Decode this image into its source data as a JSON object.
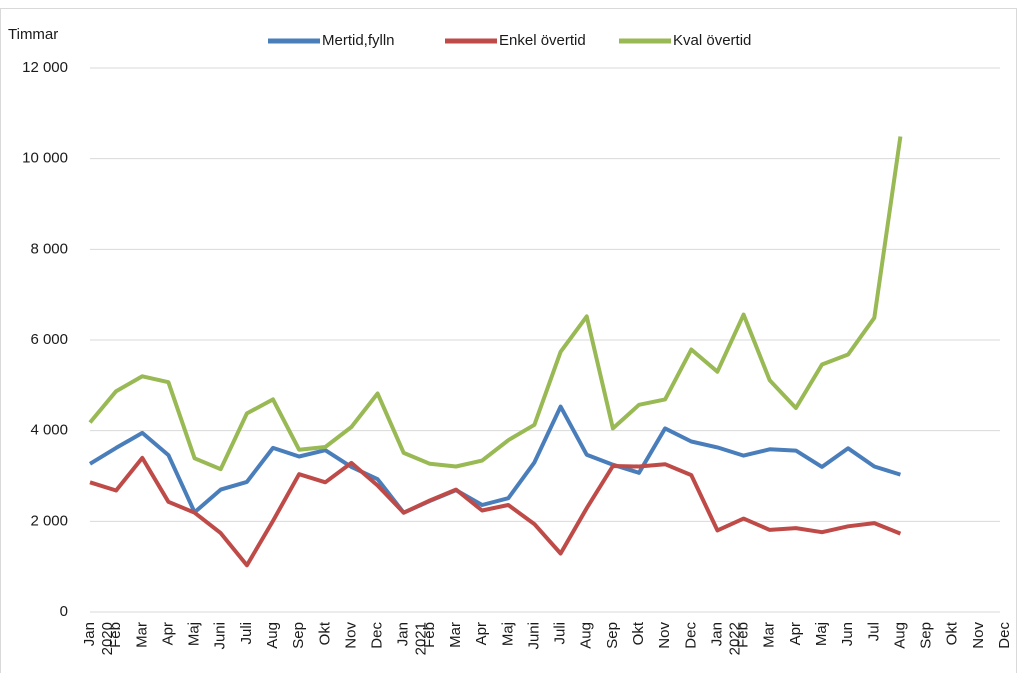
{
  "chart_data": {
    "type": "line",
    "y_axis_label": "Timmar",
    "categories": [
      "Jan",
      "Feb",
      "Mar",
      "Apr",
      "Maj",
      "Juni",
      "Juli",
      "Aug",
      "Sep",
      "Okt",
      "Nov",
      "Dec",
      "Jan",
      "Feb",
      "Mar",
      "Apr",
      "Maj",
      "Juni",
      "Juli",
      "Aug",
      "Sep",
      "Okt",
      "Nov",
      "Dec",
      "Jan",
      "Feb",
      "Mar",
      "Apr",
      "Maj",
      "Jun",
      "Jul",
      "Aug",
      "Sep",
      "Okt",
      "Nov",
      "Dec"
    ],
    "years": [
      "2020",
      "2021",
      "2022"
    ],
    "series": [
      {
        "name": "Mertid,fylln",
        "color": "#4a7ebb",
        "values": [
          3270,
          3620,
          3950,
          3460,
          2200,
          2700,
          2870,
          3620,
          3430,
          3570,
          3200,
          2930,
          2190,
          2450,
          2690,
          2360,
          2510,
          3300,
          4530,
          3470,
          3250,
          3070,
          4050,
          3760,
          3630,
          3450,
          3590,
          3560,
          3200,
          3610,
          3210,
          3030,
          null,
          null,
          null,
          null
        ]
      },
      {
        "name": "Enkel övertid",
        "color": "#be4b48",
        "values": [
          2860,
          2680,
          3400,
          2430,
          2190,
          1740,
          1030,
          2010,
          3040,
          2860,
          3290,
          2790,
          2190,
          2460,
          2700,
          2240,
          2360,
          1940,
          1290,
          2290,
          3220,
          3210,
          3260,
          3020,
          1800,
          2060,
          1810,
          1850,
          1760,
          1890,
          1960,
          1730,
          null,
          null,
          null,
          null
        ]
      },
      {
        "name": "Kval övertid",
        "color": "#98b954",
        "values": [
          4180,
          4870,
          5200,
          5070,
          3390,
          3150,
          4380,
          4690,
          3580,
          3640,
          4080,
          4820,
          3510,
          3270,
          3210,
          3340,
          3790,
          4130,
          5740,
          6520,
          4050,
          4570,
          4690,
          5790,
          5300,
          6560,
          5110,
          4500,
          5460,
          5680,
          6490,
          10490,
          null,
          null,
          null,
          null
        ]
      }
    ],
    "ylim": [
      0,
      12000
    ],
    "yticks": [
      0,
      {
        "value": 2000,
        "label": "2 000"
      },
      {
        "value": 4000,
        "label": "4 000"
      },
      {
        "value": 6000,
        "label": "6 000"
      },
      {
        "value": 8000,
        "label": "8 000"
      },
      {
        "value": 10000,
        "label": "10 000"
      },
      {
        "value": 12000,
        "label": "12 000"
      }
    ],
    "grid": true,
    "legend": "top"
  }
}
